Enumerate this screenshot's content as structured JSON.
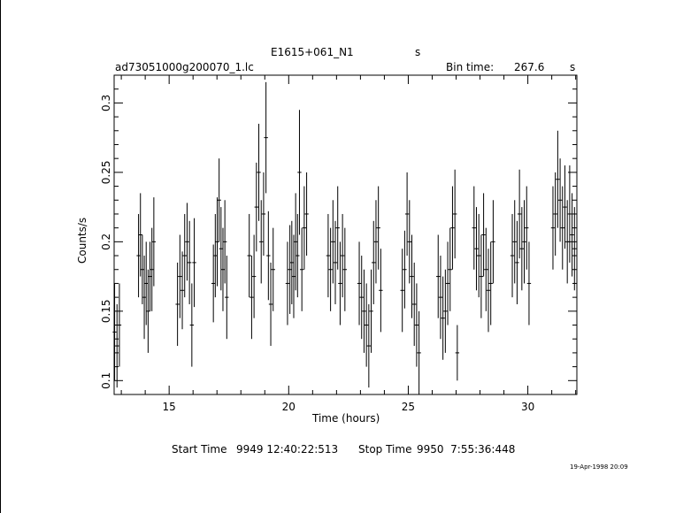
{
  "header": {
    "object": "E1615+061_N1",
    "object_unit": "s",
    "filename": "ad73051000g200070_1.lc",
    "bin_label": "Bin time:",
    "bin_value": "267.6",
    "bin_unit": "s"
  },
  "footer": {
    "start_label": "Start Time",
    "start_value": "9949 12:40:22:513",
    "stop_label": "Stop Time",
    "stop_value": "9950  7:55:36:448",
    "stamp": "19-Apr-1998 20:09"
  },
  "chart_data": {
    "type": "scatter",
    "xlabel": "Time (hours)",
    "ylabel": "Counts/s",
    "xlim": [
      12.7,
      32.05
    ],
    "ylim": [
      0.09,
      0.32
    ],
    "xticks": [
      15,
      20,
      25,
      30
    ],
    "yticks": [
      0.1,
      0.15,
      0.2,
      0.25,
      0.3
    ],
    "xtick_labels": [
      "15",
      "20",
      "25",
      "30"
    ],
    "ytick_labels": [
      "0.1",
      "0.15",
      "0.2",
      "0.25",
      "0.3"
    ],
    "error_bars": true,
    "points": [
      [
        12.72,
        0.135,
        0.035
      ],
      [
        12.82,
        0.125,
        0.03
      ],
      [
        12.92,
        0.14,
        0.03
      ],
      [
        13.72,
        0.19,
        0.03
      ],
      [
        13.8,
        0.205,
        0.03
      ],
      [
        13.88,
        0.18,
        0.025
      ],
      [
        13.96,
        0.16,
        0.03
      ],
      [
        14.04,
        0.17,
        0.03
      ],
      [
        14.12,
        0.15,
        0.03
      ],
      [
        14.2,
        0.175,
        0.025
      ],
      [
        14.28,
        0.18,
        0.03
      ],
      [
        14.36,
        0.2,
        0.032
      ],
      [
        15.35,
        0.155,
        0.03
      ],
      [
        15.45,
        0.175,
        0.03
      ],
      [
        15.55,
        0.165,
        0.028
      ],
      [
        15.65,
        0.19,
        0.03
      ],
      [
        15.75,
        0.2,
        0.028
      ],
      [
        15.85,
        0.185,
        0.03
      ],
      [
        15.95,
        0.14,
        0.03
      ],
      [
        16.05,
        0.185,
        0.032
      ],
      [
        16.85,
        0.17,
        0.028
      ],
      [
        16.93,
        0.19,
        0.03
      ],
      [
        17.01,
        0.2,
        0.032
      ],
      [
        17.09,
        0.23,
        0.03
      ],
      [
        17.17,
        0.195,
        0.03
      ],
      [
        17.25,
        0.18,
        0.03
      ],
      [
        17.33,
        0.2,
        0.03
      ],
      [
        17.41,
        0.16,
        0.03
      ],
      [
        18.35,
        0.19,
        0.03
      ],
      [
        18.45,
        0.16,
        0.03
      ],
      [
        18.55,
        0.175,
        0.03
      ],
      [
        18.65,
        0.225,
        0.032
      ],
      [
        18.75,
        0.25,
        0.035
      ],
      [
        18.85,
        0.2,
        0.03
      ],
      [
        18.95,
        0.22,
        0.03
      ],
      [
        19.05,
        0.275,
        0.04
      ],
      [
        19.15,
        0.19,
        0.032
      ],
      [
        19.25,
        0.155,
        0.03
      ],
      [
        19.35,
        0.18,
        0.03
      ],
      [
        19.95,
        0.17,
        0.03
      ],
      [
        20.05,
        0.18,
        0.032
      ],
      [
        20.13,
        0.185,
        0.03
      ],
      [
        20.21,
        0.175,
        0.03
      ],
      [
        20.29,
        0.2,
        0.035
      ],
      [
        20.37,
        0.19,
        0.03
      ],
      [
        20.45,
        0.25,
        0.045
      ],
      [
        20.55,
        0.18,
        0.03
      ],
      [
        20.65,
        0.21,
        0.03
      ],
      [
        20.75,
        0.22,
        0.03
      ],
      [
        21.65,
        0.19,
        0.03
      ],
      [
        21.75,
        0.18,
        0.03
      ],
      [
        21.85,
        0.2,
        0.03
      ],
      [
        21.95,
        0.185,
        0.03
      ],
      [
        22.05,
        0.21,
        0.03
      ],
      [
        22.15,
        0.17,
        0.03
      ],
      [
        22.25,
        0.19,
        0.03
      ],
      [
        22.35,
        0.18,
        0.03
      ],
      [
        22.95,
        0.17,
        0.03
      ],
      [
        23.05,
        0.16,
        0.03
      ],
      [
        23.15,
        0.15,
        0.03
      ],
      [
        23.25,
        0.14,
        0.03
      ],
      [
        23.35,
        0.125,
        0.03
      ],
      [
        23.45,
        0.15,
        0.03
      ],
      [
        23.55,
        0.185,
        0.03
      ],
      [
        23.65,
        0.2,
        0.03
      ],
      [
        23.75,
        0.21,
        0.03
      ],
      [
        23.85,
        0.165,
        0.03
      ],
      [
        24.75,
        0.165,
        0.03
      ],
      [
        24.85,
        0.18,
        0.028
      ],
      [
        24.95,
        0.22,
        0.03
      ],
      [
        25.05,
        0.2,
        0.03
      ],
      [
        25.15,
        0.175,
        0.03
      ],
      [
        25.25,
        0.155,
        0.03
      ],
      [
        25.35,
        0.14,
        0.03
      ],
      [
        25.45,
        0.12,
        0.03
      ],
      [
        26.25,
        0.175,
        0.03
      ],
      [
        26.35,
        0.16,
        0.03
      ],
      [
        26.45,
        0.145,
        0.03
      ],
      [
        26.55,
        0.15,
        0.03
      ],
      [
        26.65,
        0.17,
        0.03
      ],
      [
        26.75,
        0.18,
        0.03
      ],
      [
        26.85,
        0.21,
        0.03
      ],
      [
        26.95,
        0.22,
        0.032
      ],
      [
        27.05,
        0.12,
        0.02
      ],
      [
        27.75,
        0.21,
        0.03
      ],
      [
        27.85,
        0.195,
        0.03
      ],
      [
        27.95,
        0.19,
        0.03
      ],
      [
        28.05,
        0.175,
        0.03
      ],
      [
        28.15,
        0.205,
        0.03
      ],
      [
        28.25,
        0.18,
        0.03
      ],
      [
        28.35,
        0.165,
        0.03
      ],
      [
        28.45,
        0.17,
        0.03
      ],
      [
        28.55,
        0.2,
        0.03
      ],
      [
        29.35,
        0.19,
        0.03
      ],
      [
        29.45,
        0.2,
        0.03
      ],
      [
        29.55,
        0.185,
        0.03
      ],
      [
        29.65,
        0.22,
        0.032
      ],
      [
        29.75,
        0.195,
        0.03
      ],
      [
        29.85,
        0.2,
        0.03
      ],
      [
        29.95,
        0.21,
        0.03
      ],
      [
        30.05,
        0.17,
        0.03
      ],
      [
        31.05,
        0.21,
        0.03
      ],
      [
        31.15,
        0.22,
        0.03
      ],
      [
        31.25,
        0.245,
        0.035
      ],
      [
        31.35,
        0.23,
        0.03
      ],
      [
        31.45,
        0.21,
        0.03
      ],
      [
        31.55,
        0.225,
        0.03
      ],
      [
        31.65,
        0.2,
        0.03
      ],
      [
        31.75,
        0.22,
        0.035
      ],
      [
        31.85,
        0.205,
        0.03
      ],
      [
        31.95,
        0.195,
        0.03
      ]
    ]
  }
}
